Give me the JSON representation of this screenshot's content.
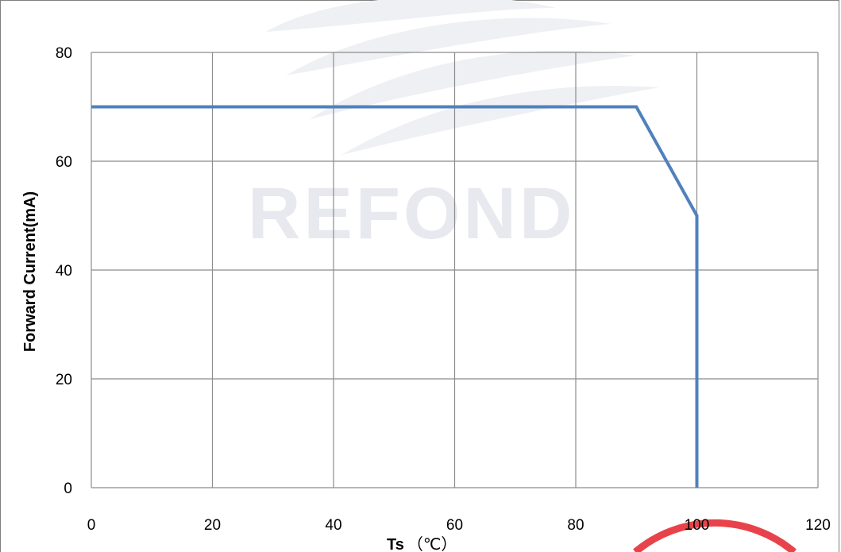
{
  "chart_data": {
    "type": "line",
    "title": "",
    "xlabel": "Ts",
    "xlabel_unit": "（℃）",
    "ylabel": "Forward Current(mA)",
    "xlim": [
      0,
      120
    ],
    "ylim": [
      0,
      80
    ],
    "x_ticks": [
      "0",
      "20",
      "40",
      "60",
      "80",
      "100",
      "120"
    ],
    "y_ticks": [
      "0",
      "20",
      "40",
      "60",
      "80"
    ],
    "grid": true,
    "series": [
      {
        "x": [
          0,
          90,
          100,
          100
        ],
        "y": [
          70,
          70,
          50,
          0
        ]
      }
    ],
    "colors": {
      "line": "#4f81bd",
      "grid": "#8c8c8c",
      "watermark": "#e7e9ef",
      "badge": "#e8434a"
    }
  },
  "watermark": {
    "brand": "REFOND"
  }
}
